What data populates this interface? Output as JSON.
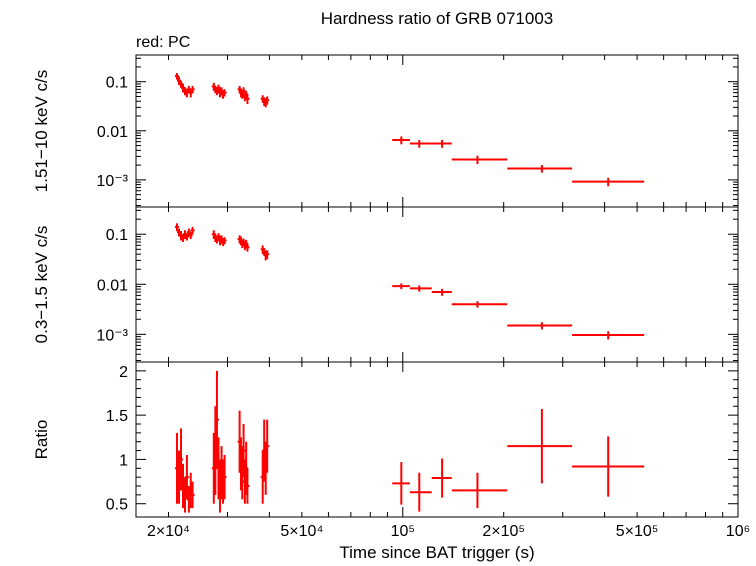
{
  "title": "Hardness ratio of GRB 071003",
  "legend_note": "red: PC",
  "xlabel": "Time since BAT trigger (s)",
  "colors": {
    "data": "#ff0000",
    "axes": "#000000",
    "background": "#ffffff"
  },
  "chart_data": [
    {
      "type": "scatter",
      "panel": "top",
      "ylabel": "1.51−10 keV c/s",
      "xscale": "log",
      "yscale": "log",
      "xlim": [
        16000,
        1000000
      ],
      "ylim": [
        0.00028,
        0.35
      ],
      "yticks": [
        {
          "value": 0.1,
          "label": "0.1"
        },
        {
          "value": 0.01,
          "label": "0.01"
        },
        {
          "value": 0.001,
          "label": "10⁻³"
        }
      ],
      "series": [
        {
          "points": [
            {
              "x": 21200,
              "y": 0.13,
              "yerr": 0.02
            },
            {
              "x": 21500,
              "y": 0.105,
              "yerr": 0.02
            },
            {
              "x": 21800,
              "y": 0.09,
              "yerr": 0.015
            },
            {
              "x": 22100,
              "y": 0.075,
              "yerr": 0.015
            },
            {
              "x": 22400,
              "y": 0.065,
              "yerr": 0.012
            },
            {
              "x": 22700,
              "y": 0.06,
              "yerr": 0.012
            },
            {
              "x": 23000,
              "y": 0.07,
              "yerr": 0.012
            },
            {
              "x": 23300,
              "y": 0.06,
              "yerr": 0.012
            },
            {
              "x": 23600,
              "y": 0.07,
              "yerr": 0.012
            },
            {
              "x": 27300,
              "y": 0.08,
              "yerr": 0.015
            },
            {
              "x": 27600,
              "y": 0.07,
              "yerr": 0.012
            },
            {
              "x": 27900,
              "y": 0.065,
              "yerr": 0.012
            },
            {
              "x": 28200,
              "y": 0.075,
              "yerr": 0.012
            },
            {
              "x": 28500,
              "y": 0.06,
              "yerr": 0.012
            },
            {
              "x": 28800,
              "y": 0.065,
              "yerr": 0.012
            },
            {
              "x": 29100,
              "y": 0.055,
              "yerr": 0.01
            },
            {
              "x": 29400,
              "y": 0.06,
              "yerr": 0.01
            },
            {
              "x": 32600,
              "y": 0.07,
              "yerr": 0.012
            },
            {
              "x": 32900,
              "y": 0.06,
              "yerr": 0.012
            },
            {
              "x": 33200,
              "y": 0.055,
              "yerr": 0.01
            },
            {
              "x": 33500,
              "y": 0.065,
              "yerr": 0.012
            },
            {
              "x": 33800,
              "y": 0.05,
              "yerr": 0.01
            },
            {
              "x": 34100,
              "y": 0.055,
              "yerr": 0.01
            },
            {
              "x": 34400,
              "y": 0.045,
              "yerr": 0.01
            },
            {
              "x": 38200,
              "y": 0.045,
              "yerr": 0.008
            },
            {
              "x": 38600,
              "y": 0.04,
              "yerr": 0.008
            },
            {
              "x": 39000,
              "y": 0.038,
              "yerr": 0.008
            },
            {
              "x": 39400,
              "y": 0.042,
              "yerr": 0.008
            },
            {
              "x": 99000,
              "y": 0.0065,
              "yerr": 0.0012,
              "xlo": 93000,
              "xhi": 105000
            },
            {
              "x": 112000,
              "y": 0.0055,
              "yerr": 0.001,
              "xlo": 105000,
              "xhi": 122000
            },
            {
              "x": 131000,
              "y": 0.0055,
              "yerr": 0.001,
              "xlo": 122000,
              "xhi": 140000
            },
            {
              "x": 167000,
              "y": 0.0026,
              "yerr": 0.0005,
              "xlo": 140000,
              "xhi": 205000
            },
            {
              "x": 260000,
              "y": 0.0017,
              "yerr": 0.0003,
              "xlo": 205000,
              "xhi": 320000
            },
            {
              "x": 410000,
              "y": 0.00092,
              "yerr": 0.00018,
              "xlo": 320000,
              "xhi": 525000
            }
          ]
        }
      ]
    },
    {
      "type": "scatter",
      "panel": "middle",
      "ylabel": "0.3−1.5 keV c/s",
      "xscale": "log",
      "yscale": "log",
      "xlim": [
        16000,
        1000000
      ],
      "ylim": [
        0.00028,
        0.35
      ],
      "yticks": [
        {
          "value": 0.1,
          "label": "0.1"
        },
        {
          "value": 0.01,
          "label": "0.01"
        },
        {
          "value": 0.001,
          "label": "10⁻³"
        }
      ],
      "series": [
        {
          "points": [
            {
              "x": 21200,
              "y": 0.14,
              "yerr": 0.025
            },
            {
              "x": 21500,
              "y": 0.11,
              "yerr": 0.02
            },
            {
              "x": 21800,
              "y": 0.095,
              "yerr": 0.02
            },
            {
              "x": 22100,
              "y": 0.085,
              "yerr": 0.015
            },
            {
              "x": 22400,
              "y": 0.1,
              "yerr": 0.02
            },
            {
              "x": 22700,
              "y": 0.09,
              "yerr": 0.015
            },
            {
              "x": 23000,
              "y": 0.11,
              "yerr": 0.02
            },
            {
              "x": 23300,
              "y": 0.095,
              "yerr": 0.015
            },
            {
              "x": 23600,
              "y": 0.12,
              "yerr": 0.02
            },
            {
              "x": 27300,
              "y": 0.1,
              "yerr": 0.02
            },
            {
              "x": 27600,
              "y": 0.085,
              "yerr": 0.015
            },
            {
              "x": 27900,
              "y": 0.08,
              "yerr": 0.015
            },
            {
              "x": 28200,
              "y": 0.09,
              "yerr": 0.015
            },
            {
              "x": 28500,
              "y": 0.075,
              "yerr": 0.015
            },
            {
              "x": 28800,
              "y": 0.08,
              "yerr": 0.015
            },
            {
              "x": 29100,
              "y": 0.07,
              "yerr": 0.012
            },
            {
              "x": 29400,
              "y": 0.075,
              "yerr": 0.012
            },
            {
              "x": 32600,
              "y": 0.08,
              "yerr": 0.015
            },
            {
              "x": 32900,
              "y": 0.075,
              "yerr": 0.015
            },
            {
              "x": 33200,
              "y": 0.065,
              "yerr": 0.012
            },
            {
              "x": 33500,
              "y": 0.07,
              "yerr": 0.012
            },
            {
              "x": 33800,
              "y": 0.06,
              "yerr": 0.012
            },
            {
              "x": 34100,
              "y": 0.065,
              "yerr": 0.012
            },
            {
              "x": 34400,
              "y": 0.055,
              "yerr": 0.01
            },
            {
              "x": 38200,
              "y": 0.05,
              "yerr": 0.01
            },
            {
              "x": 38600,
              "y": 0.045,
              "yerr": 0.008
            },
            {
              "x": 39000,
              "y": 0.038,
              "yerr": 0.008
            },
            {
              "x": 39400,
              "y": 0.04,
              "yerr": 0.008
            },
            {
              "x": 99000,
              "y": 0.0092,
              "yerr": 0.0012,
              "xlo": 93000,
              "xhi": 105000
            },
            {
              "x": 112000,
              "y": 0.0083,
              "yerr": 0.0012,
              "xlo": 105000,
              "xhi": 122000
            },
            {
              "x": 131000,
              "y": 0.007,
              "yerr": 0.0011,
              "xlo": 122000,
              "xhi": 140000
            },
            {
              "x": 167000,
              "y": 0.004,
              "yerr": 0.0006,
              "xlo": 140000,
              "xhi": 205000
            },
            {
              "x": 260000,
              "y": 0.0015,
              "yerr": 0.00025,
              "xlo": 205000,
              "xhi": 320000
            },
            {
              "x": 410000,
              "y": 0.00097,
              "yerr": 0.00018,
              "xlo": 320000,
              "xhi": 525000
            }
          ]
        }
      ]
    },
    {
      "type": "scatter",
      "panel": "bottom",
      "ylabel": "Ratio",
      "xscale": "log",
      "yscale": "linear",
      "xlim": [
        16000,
        1000000
      ],
      "ylim": [
        0.35,
        2.1
      ],
      "yticks": [
        {
          "value": 2,
          "label": "2"
        },
        {
          "value": 1.5,
          "label": "1.5"
        },
        {
          "value": 1,
          "label": "1"
        },
        {
          "value": 0.5,
          "label": "0.5"
        }
      ],
      "series": [
        {
          "points": [
            {
              "x": 21200,
              "y": 0.9,
              "yerr": 0.4
            },
            {
              "x": 21500,
              "y": 0.8,
              "yerr": 0.3
            },
            {
              "x": 21800,
              "y": 1.0,
              "yerr": 0.35
            },
            {
              "x": 22100,
              "y": 0.7,
              "yerr": 0.25
            },
            {
              "x": 22400,
              "y": 0.6,
              "yerr": 0.2
            },
            {
              "x": 22700,
              "y": 0.8,
              "yerr": 0.25
            },
            {
              "x": 23000,
              "y": 0.55,
              "yerr": 0.15
            },
            {
              "x": 23300,
              "y": 0.65,
              "yerr": 0.2
            },
            {
              "x": 23600,
              "y": 0.6,
              "yerr": 0.15
            },
            {
              "x": 27300,
              "y": 0.9,
              "yerr": 0.4
            },
            {
              "x": 27600,
              "y": 1.1,
              "yerr": 0.5
            },
            {
              "x": 27900,
              "y": 1.45,
              "yerr": 0.55
            },
            {
              "x": 28200,
              "y": 0.9,
              "yerr": 0.35
            },
            {
              "x": 28500,
              "y": 0.7,
              "yerr": 0.3
            },
            {
              "x": 28800,
              "y": 0.85,
              "yerr": 0.3
            },
            {
              "x": 29100,
              "y": 0.75,
              "yerr": 0.25
            },
            {
              "x": 29400,
              "y": 0.8,
              "yerr": 0.25
            },
            {
              "x": 32600,
              "y": 1.2,
              "yerr": 0.35
            },
            {
              "x": 32900,
              "y": 0.95,
              "yerr": 0.3
            },
            {
              "x": 33200,
              "y": 0.85,
              "yerr": 0.3
            },
            {
              "x": 33500,
              "y": 1.1,
              "yerr": 0.3
            },
            {
              "x": 33800,
              "y": 0.75,
              "yerr": 0.25
            },
            {
              "x": 34100,
              "y": 0.9,
              "yerr": 0.3
            },
            {
              "x": 34400,
              "y": 0.7,
              "yerr": 0.2
            },
            {
              "x": 38200,
              "y": 0.8,
              "yerr": 0.3
            },
            {
              "x": 38600,
              "y": 1.1,
              "yerr": 0.35
            },
            {
              "x": 39000,
              "y": 0.9,
              "yerr": 0.3
            },
            {
              "x": 39400,
              "y": 1.15,
              "yerr": 0.3
            },
            {
              "x": 99000,
              "y": 0.73,
              "yerr": 0.24,
              "xlo": 93000,
              "xhi": 105000
            },
            {
              "x": 112000,
              "y": 0.63,
              "yerr": 0.22,
              "xlo": 105000,
              "xhi": 122000
            },
            {
              "x": 131000,
              "y": 0.79,
              "yerr": 0.22,
              "xlo": 122000,
              "xhi": 140000
            },
            {
              "x": 167000,
              "y": 0.65,
              "yerr": 0.2,
              "xlo": 140000,
              "xhi": 205000
            },
            {
              "x": 260000,
              "y": 1.15,
              "yerr": 0.42,
              "xlo": 205000,
              "xhi": 320000
            },
            {
              "x": 410000,
              "y": 0.92,
              "yerr": 0.34,
              "xlo": 320000,
              "xhi": 525000
            }
          ]
        }
      ]
    }
  ],
  "xticks": [
    {
      "value": 20000,
      "label": "2×10⁴"
    },
    {
      "value": 50000,
      "label": "5×10⁴"
    },
    {
      "value": 100000,
      "label": "10⁵"
    },
    {
      "value": 200000,
      "label": "2×10⁵"
    },
    {
      "value": 500000,
      "label": "5×10⁵"
    },
    {
      "value": 1000000,
      "label": "10⁶"
    }
  ]
}
